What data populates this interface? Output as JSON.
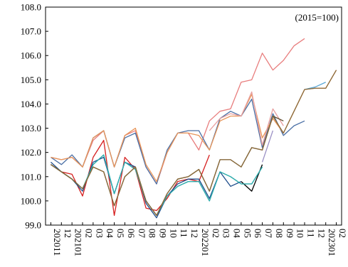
{
  "chart_data": {
    "type": "line",
    "unit_note": "(2015=100)",
    "ylim": [
      99.0,
      108.0
    ],
    "yticks": [
      "108.0",
      "107.0",
      "106.0",
      "105.0",
      "104.0",
      "103.0",
      "102.0",
      "101.0",
      "100.0",
      "99.0"
    ],
    "grid": false,
    "x": [
      "202011",
      "12",
      "202101",
      "02",
      "03",
      "04",
      "05",
      "06",
      "07",
      "08",
      "09",
      "10",
      "11",
      "12",
      "202201",
      "02",
      "03",
      "04",
      "05",
      "06",
      "07",
      "08",
      "09",
      "10",
      "11",
      "12",
      "202301",
      "02"
    ],
    "series": [
      {
        "color": "#e87d7d",
        "values": [
          101.8,
          101.7,
          101.8,
          101.4,
          102.5,
          102.9,
          101.4,
          102.7,
          102.9,
          101.4,
          100.7,
          102.0,
          102.8,
          102.8,
          102.1,
          103.3,
          103.7,
          103.8,
          104.9,
          105.0,
          106.1,
          105.4,
          105.8,
          106.4,
          106.7,
          null,
          null,
          null
        ]
      },
      {
        "color": "#4a6fa5",
        "values": [
          101.8,
          101.5,
          101.9,
          101.4,
          102.6,
          102.9,
          101.4,
          102.6,
          102.8,
          101.4,
          100.7,
          102.1,
          102.8,
          102.9,
          102.9,
          102.1,
          103.4,
          103.7,
          103.5,
          104.2,
          102.2,
          103.6,
          102.7,
          103.1,
          103.3,
          null,
          null,
          null
        ]
      },
      {
        "color": "#e8965a",
        "values": [
          101.8,
          101.7,
          101.8,
          101.4,
          102.6,
          102.9,
          101.4,
          102.7,
          103.0,
          101.5,
          100.8,
          102.0,
          102.8,
          102.8,
          102.7,
          102.1,
          103.3,
          103.5,
          103.5,
          104.4,
          102.6,
          103.4,
          102.8,
          103.7,
          104.6,
          104.65,
          104.65,
          105.4
        ]
      },
      {
        "color": "#9a8fc4",
        "values": [
          null,
          null,
          null,
          null,
          null,
          null,
          null,
          null,
          null,
          null,
          null,
          null,
          null,
          null,
          null,
          null,
          null,
          null,
          null,
          null,
          101.6,
          102.9,
          null,
          null,
          null,
          null,
          null,
          null
        ]
      },
      {
        "color": "#5aa7d6",
        "values": [
          null,
          null,
          null,
          null,
          null,
          null,
          null,
          null,
          null,
          null,
          null,
          null,
          null,
          null,
          null,
          null,
          null,
          null,
          null,
          null,
          null,
          null,
          null,
          null,
          104.6,
          104.7,
          104.9,
          null
        ]
      },
      {
        "color": "#e8a0a0",
        "values": [
          null,
          null,
          null,
          null,
          null,
          null,
          null,
          null,
          null,
          null,
          null,
          null,
          null,
          null,
          null,
          102.9,
          103.4,
          103.6,
          103.5,
          104.5,
          102.3,
          103.8,
          103.1,
          null,
          null,
          null,
          null,
          null
        ]
      },
      {
        "color": "#d62020",
        "values": [
          101.5,
          101.2,
          101.1,
          100.2,
          101.8,
          102.5,
          99.4,
          101.8,
          101.3,
          99.7,
          99.6,
          100.1,
          100.8,
          100.9,
          100.8,
          101.9,
          null,
          null,
          null,
          null,
          null,
          null,
          null,
          null,
          null,
          null,
          null,
          null
        ]
      },
      {
        "color": "#2a8a8a",
        "values": [
          101.5,
          101.2,
          100.9,
          100.5,
          101.5,
          101.9,
          100.3,
          101.6,
          101.3,
          100.0,
          99.4,
          100.2,
          100.6,
          100.8,
          100.8,
          100.0,
          101.2,
          101.0,
          100.7,
          100.7,
          101.4,
          null,
          null,
          null,
          null,
          null,
          null,
          null
        ]
      },
      {
        "color": "#1f4e8c",
        "values": [
          101.6,
          101.2,
          100.9,
          100.4,
          101.6,
          101.8,
          100.3,
          101.6,
          101.4,
          99.9,
          99.3,
          100.2,
          100.7,
          100.9,
          100.9,
          100.1,
          101.2,
          100.6,
          100.8,
          null,
          null,
          null,
          null,
          null,
          null,
          null,
          null,
          null
        ]
      },
      {
        "color": "#000000",
        "values": [
          null,
          null,
          null,
          null,
          null,
          null,
          null,
          null,
          null,
          null,
          null,
          null,
          null,
          null,
          null,
          null,
          null,
          null,
          100.8,
          100.4,
          101.5,
          null,
          null,
          null,
          null,
          null,
          null,
          null
        ]
      },
      {
        "color": "#30b0b0",
        "values": [
          101.5,
          101.2,
          100.9,
          100.5,
          101.5,
          101.9,
          100.3,
          101.6,
          101.3,
          100.0,
          99.4,
          100.2,
          100.6,
          100.8,
          100.8,
          100.0,
          101.2,
          101.0,
          100.7,
          100.7,
          101.4,
          null,
          null,
          null,
          null,
          null,
          null,
          null
        ]
      },
      {
        "color": "#5c4a2a",
        "values": [
          101.5,
          101.2,
          100.9,
          100.5,
          101.4,
          101.2,
          99.8,
          101.0,
          101.4,
          100.0,
          99.4,
          100.3,
          100.9,
          101.0,
          101.3,
          100.4,
          101.7,
          101.7,
          101.4,
          102.2,
          102.1,
          103.5,
          103.3,
          null,
          null,
          null,
          null,
          null
        ]
      },
      {
        "color": "#8a6a3a",
        "values": [
          101.5,
          101.2,
          100.9,
          100.5,
          101.4,
          101.2,
          99.8,
          101.0,
          101.4,
          100.0,
          99.4,
          100.3,
          100.9,
          101.0,
          101.3,
          100.4,
          101.7,
          101.7,
          101.4,
          102.2,
          102.1,
          103.5,
          102.8,
          103.7,
          104.6,
          104.65,
          104.65,
          105.4
        ]
      }
    ]
  }
}
